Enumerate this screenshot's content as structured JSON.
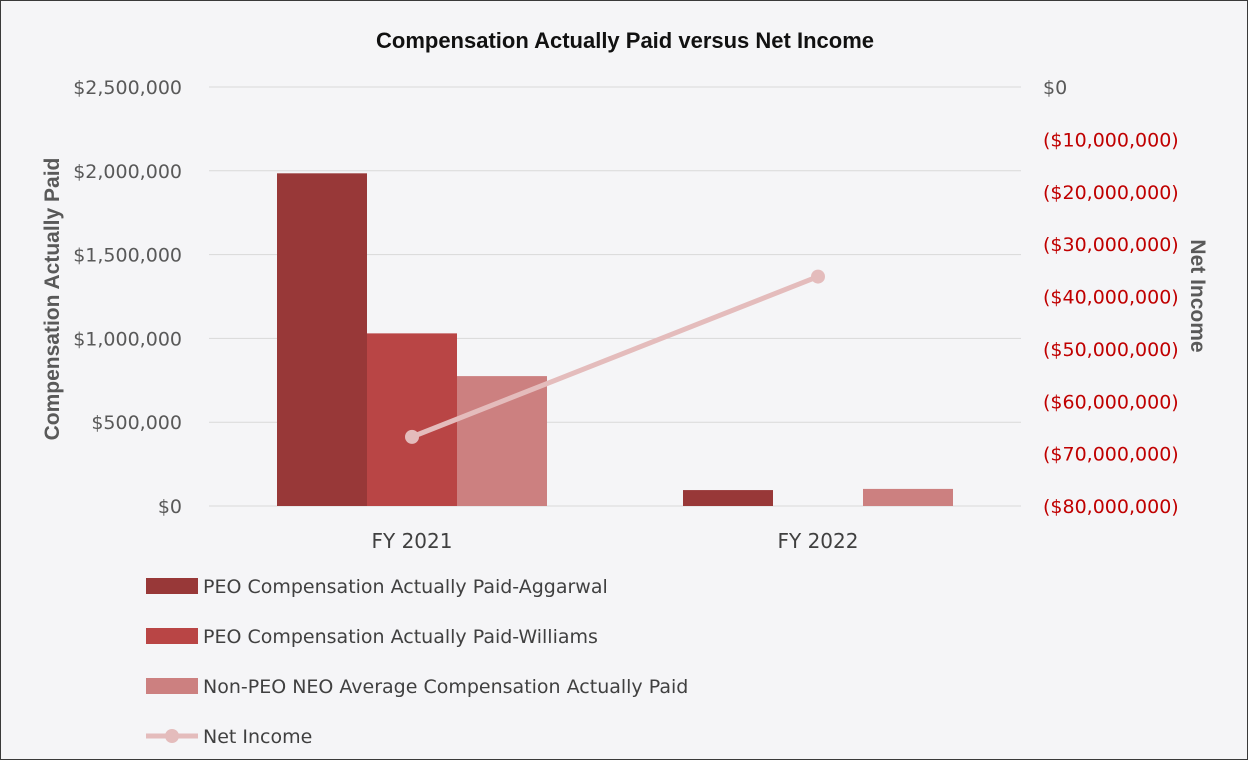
{
  "chart_data": {
    "type": "bar",
    "title": "Compensation Actually Paid versus Net Income",
    "categories": [
      "FY 2021",
      "FY 2022"
    ],
    "ylabel": "Compensation Actually Paid",
    "ylim": [
      0,
      2500000
    ],
    "y_ticks": [
      0,
      500000,
      1000000,
      1500000,
      2000000,
      2500000
    ],
    "y_tick_labels": [
      "$0",
      "$500,000",
      "$1,000,000",
      "$1,500,000",
      "$2,000,000",
      "$2,500,000"
    ],
    "y2label": "Net Income",
    "y2lim": [
      -80000000,
      0
    ],
    "y2_ticks": [
      0,
      -10000000,
      -20000000,
      -30000000,
      -40000000,
      -50000000,
      -60000000,
      -70000000,
      -80000000
    ],
    "y2_tick_labels": [
      "$0",
      "($10,000,000)",
      "($20,000,000)",
      "($30,000,000)",
      "($40,000,000)",
      "($50,000,000)",
      "($60,000,000)",
      "($70,000,000)",
      "($80,000,000)"
    ],
    "grid": true,
    "legend_position": "bottom-left",
    "series": [
      {
        "name": "PEO Compensation Actually Paid-Aggarwal",
        "type": "bar",
        "axis": "left",
        "color": "#983838",
        "values": [
          1985000,
          95000
        ]
      },
      {
        "name": "PEO Compensation Actually Paid-Williams",
        "type": "bar",
        "axis": "left",
        "color": "#b94545",
        "values": [
          1030000,
          null
        ]
      },
      {
        "name": "Non-PEO NEO Average Compensation Actually Paid",
        "type": "bar",
        "axis": "left",
        "color": "#cc8080",
        "values": [
          775000,
          102000
        ]
      },
      {
        "name": "Net Income",
        "type": "line",
        "axis": "right",
        "color": "#e4bcbc",
        "values": [
          -66800000,
          -36200000
        ]
      }
    ]
  }
}
